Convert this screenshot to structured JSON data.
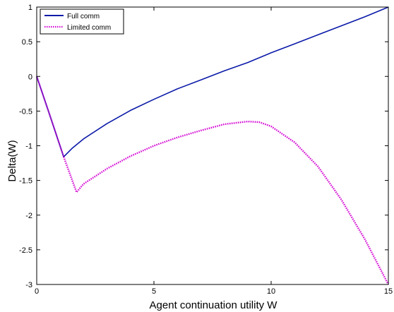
{
  "chart_data": {
    "type": "line",
    "xlabel": "Agent continuation utility W",
    "ylabel": "Delta(W)",
    "xlim": [
      0,
      15
    ],
    "ylim": [
      -3,
      1
    ],
    "xticks": [
      0,
      5,
      10,
      15
    ],
    "xtick_labels": [
      "0",
      "5",
      "10",
      "15"
    ],
    "yticks": [
      -3,
      -2.5,
      -2,
      -1.5,
      -1,
      -0.5,
      0,
      0.5,
      1
    ],
    "ytick_labels": [
      "-3",
      "-2.5",
      "-2",
      "-1.5",
      "-1",
      "-0.5",
      "0",
      "0.5",
      "1"
    ],
    "grid": false,
    "legend_position": "top-left",
    "series": [
      {
        "name": "Full comm",
        "color": "#0b1aa8",
        "style": "solid",
        "x": [
          0,
          0.5,
          1.15,
          1.5,
          2,
          3,
          4,
          5,
          6,
          7,
          8,
          9,
          10,
          11,
          12,
          13,
          14,
          15
        ],
        "y": [
          0,
          -0.5,
          -1.16,
          -1.04,
          -0.9,
          -0.68,
          -0.49,
          -0.33,
          -0.18,
          -0.05,
          0.08,
          0.2,
          0.34,
          0.47,
          0.6,
          0.73,
          0.86,
          1.0
        ]
      },
      {
        "name": "Limited comm",
        "color": "#d40bd4",
        "style": "dotted",
        "x": [
          0,
          0.5,
          1.15,
          1.7,
          2,
          3,
          4,
          5,
          6,
          7,
          8,
          9,
          9.5,
          10,
          11,
          12,
          13,
          14,
          15
        ],
        "y": [
          0,
          -0.5,
          -1.16,
          -1.67,
          -1.55,
          -1.33,
          -1.15,
          -1.0,
          -0.88,
          -0.78,
          -0.69,
          -0.65,
          -0.66,
          -0.72,
          -0.95,
          -1.3,
          -1.78,
          -2.35,
          -3.0
        ]
      }
    ]
  }
}
